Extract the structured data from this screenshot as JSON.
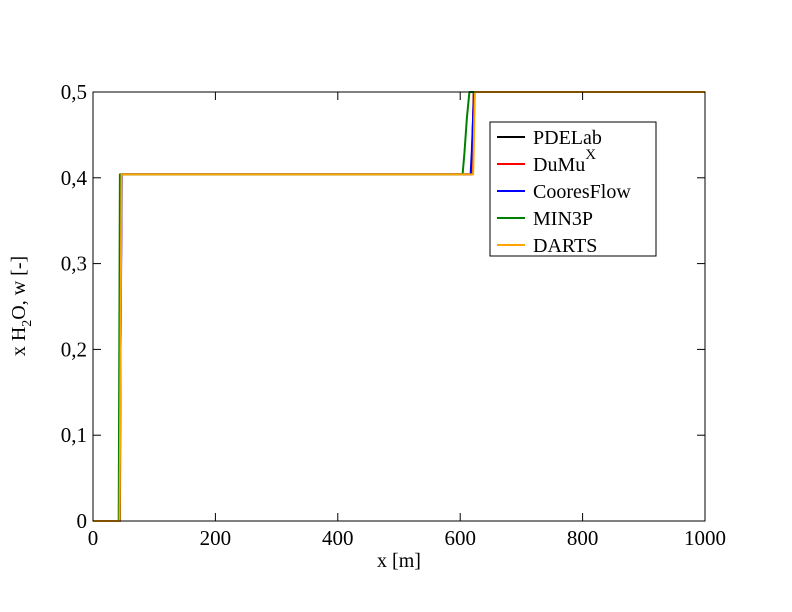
{
  "chart_data": {
    "type": "line",
    "title": "",
    "xlabel": "x [m]",
    "ylabel": {
      "pre": "x H",
      "sub": "2",
      "post": "O, w [-]"
    },
    "xlim": [
      0,
      1000
    ],
    "ylim": [
      0,
      0.5
    ],
    "x_ticks": [
      0,
      200,
      400,
      600,
      800,
      1000
    ],
    "x_tick_labels": [
      "0",
      "200",
      "400",
      "600",
      "800",
      "1000"
    ],
    "y_ticks": [
      0,
      0.1,
      0.2,
      0.3,
      0.4,
      0.5
    ],
    "y_tick_labels": [
      "0",
      "0,1",
      "0,2",
      "0,3",
      "0,4",
      "0,5"
    ],
    "grid": false,
    "legend_position": "top-right",
    "series": [
      {
        "name": "PDELab",
        "color": "#000000",
        "x": [
          0,
          44,
          45,
          46,
          619,
          620,
          621,
          622,
          1000
        ],
        "y": [
          0,
          0,
          0.2,
          0.404,
          0.404,
          0.43,
          0.47,
          0.5,
          0.5
        ]
      },
      {
        "name": "DuMu",
        "name_sup": "X",
        "color": "#ff0000",
        "x": [
          0,
          43.5,
          45,
          46.5,
          618,
          619.5,
          621,
          622.5,
          1000
        ],
        "y": [
          0,
          0,
          0.2,
          0.404,
          0.404,
          0.43,
          0.47,
          0.5,
          0.5
        ]
      },
      {
        "name": "CooresFlow",
        "color": "#0000ff",
        "x": [
          0,
          43,
          45,
          47,
          617,
          619,
          621,
          623,
          1000
        ],
        "y": [
          0,
          0,
          0.2,
          0.404,
          0.404,
          0.43,
          0.47,
          0.5,
          0.5
        ]
      },
      {
        "name": "MIN3P",
        "color": "#008000",
        "x": [
          0,
          42,
          43,
          44,
          604,
          607,
          611,
          615,
          1000
        ],
        "y": [
          0,
          0,
          0.2,
          0.404,
          0.404,
          0.43,
          0.47,
          0.5,
          0.5
        ]
      },
      {
        "name": "DARTS",
        "color": "#ffa500",
        "x": [
          0,
          43.5,
          45,
          46.5,
          621,
          622,
          623,
          624,
          1000
        ],
        "y": [
          0,
          0,
          0.2,
          0.404,
          0.404,
          0.43,
          0.47,
          0.5,
          0.5
        ]
      }
    ]
  }
}
